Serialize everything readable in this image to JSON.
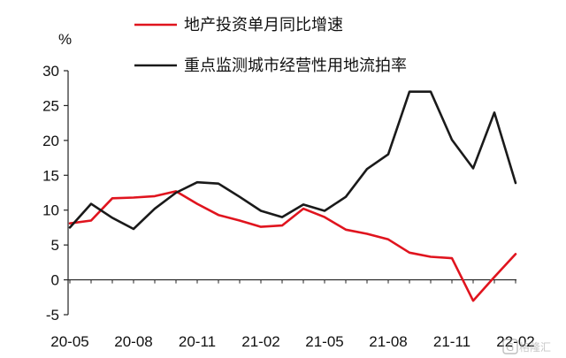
{
  "chart_data": {
    "type": "line",
    "unit": "%",
    "x": [
      "20-05",
      "20-06",
      "20-07",
      "20-08",
      "20-09",
      "20-10",
      "20-11",
      "20-12",
      "21-01",
      "21-02",
      "21-03",
      "21-04",
      "21-05",
      "21-06",
      "21-07",
      "21-08",
      "21-09",
      "21-10",
      "21-11",
      "21-12",
      "22-01",
      "22-02"
    ],
    "x_tick_labels": [
      "20-05",
      "20-08",
      "20-11",
      "21-02",
      "21-05",
      "21-08",
      "21-11",
      "22-02"
    ],
    "ylim": [
      -5,
      30
    ],
    "y_ticks": [
      -5,
      0,
      5,
      10,
      15,
      20,
      25,
      30
    ],
    "legend_position": "top",
    "series": [
      {
        "name": "地产投资单月同比增速",
        "color": "#e0141e",
        "values": [
          8.1,
          8.5,
          11.7,
          11.8,
          12.0,
          12.7,
          10.9,
          9.3,
          8.5,
          7.6,
          7.8,
          10.2,
          9.0,
          7.2,
          6.6,
          5.8,
          3.9,
          3.3,
          3.1,
          -3.0,
          0.4,
          3.7
        ]
      },
      {
        "name": "重点监测城市经营性用地流拍率",
        "color": "#1a1a1a",
        "values": [
          7.5,
          10.9,
          8.9,
          7.3,
          10.2,
          12.5,
          14.0,
          13.8,
          11.9,
          9.9,
          9.0,
          10.8,
          9.9,
          11.9,
          15.9,
          18.0,
          27.0,
          27.0,
          20.1,
          16.0,
          24.0,
          13.9
        ]
      }
    ]
  },
  "watermark": {
    "text": "格隆汇",
    "icon": "logo-g-icon"
  }
}
